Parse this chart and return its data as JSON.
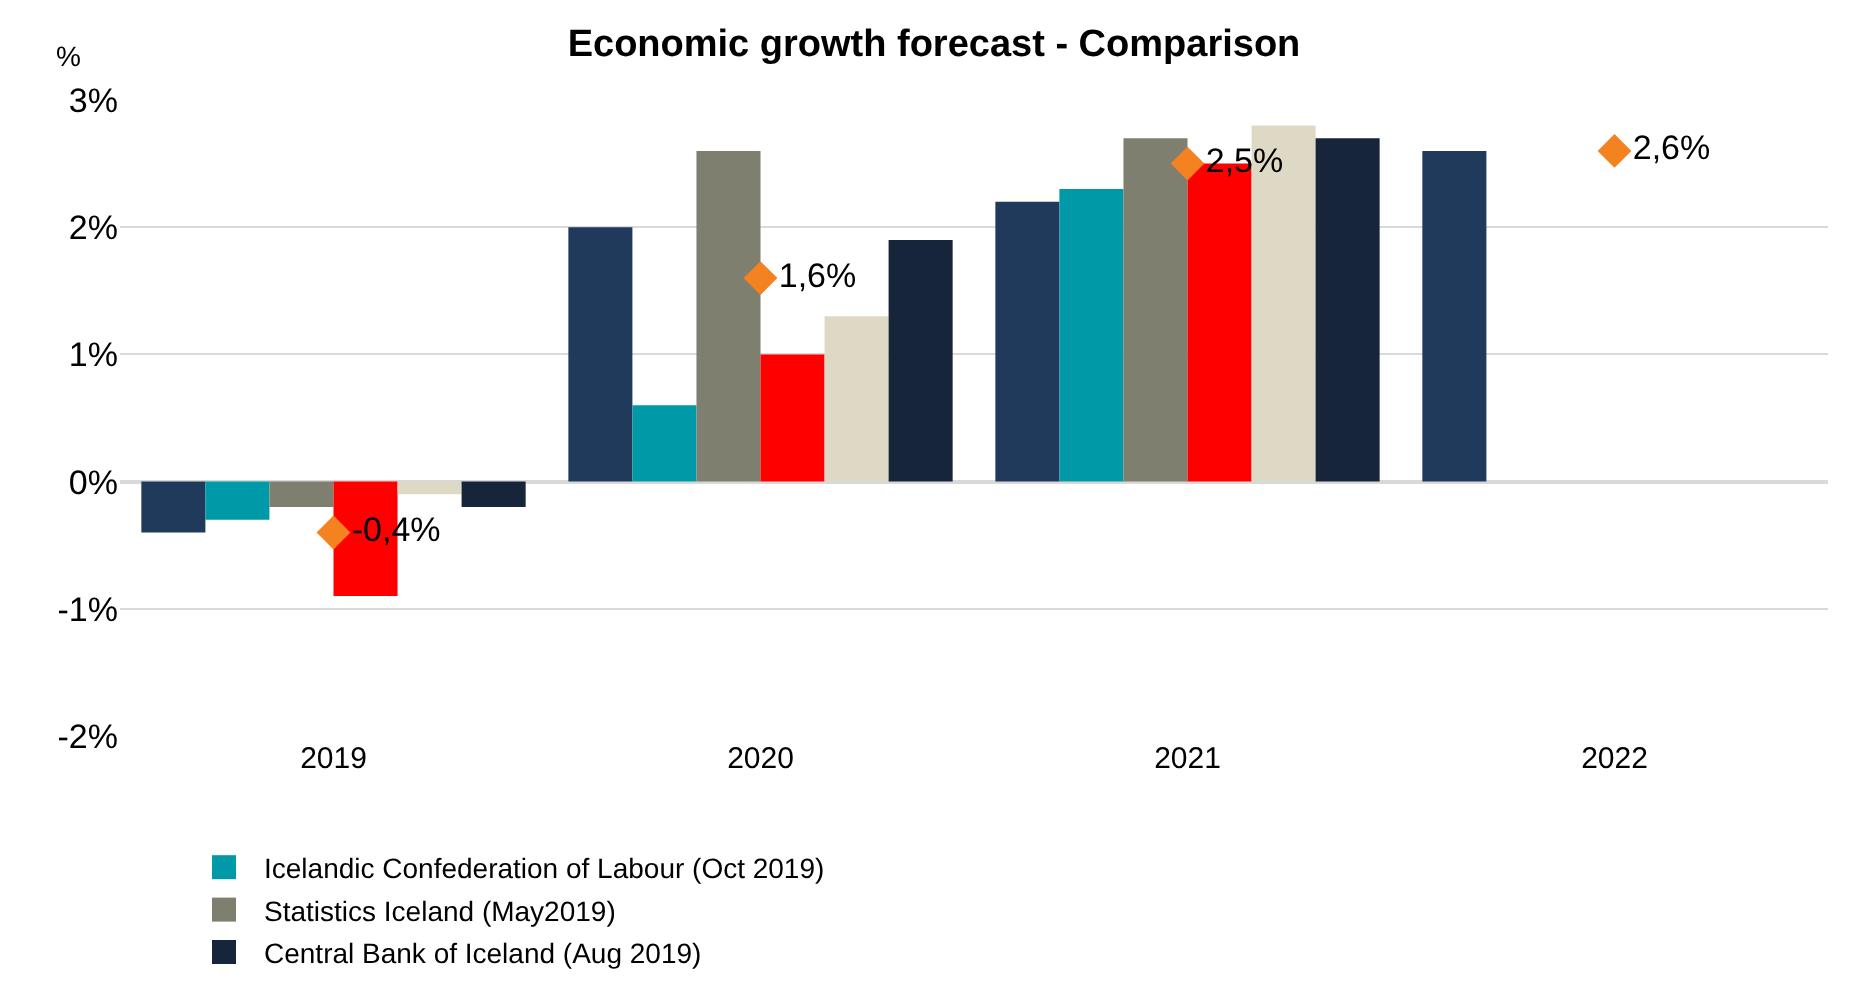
{
  "chart_data": {
    "type": "bar",
    "title": "Economic growth forecast - Comparison",
    "ylabel": "%",
    "categories": [
      "2019",
      "2020",
      "2021",
      "2022"
    ],
    "series": [
      {
        "color": "#1f3a5a",
        "values": [
          -0.4,
          2.0,
          2.2,
          2.6
        ]
      },
      {
        "name": "Icelandic Confederation of Labour (Oct 2019)",
        "color": "#0099a8",
        "values": [
          -0.3,
          0.6,
          2.3,
          null
        ]
      },
      {
        "name": "Statistics Iceland (May2019)",
        "color": "#7f7f6f",
        "values": [
          -0.2,
          2.6,
          2.7,
          null
        ]
      },
      {
        "color": "#ff0000",
        "values": [
          -0.9,
          1.0,
          2.5,
          null
        ]
      },
      {
        "color": "#ddd9c4",
        "values": [
          -0.1,
          1.3,
          2.8,
          null
        ]
      },
      {
        "name": "Central Bank of Iceland (Aug 2019)",
        "color": "#17253a",
        "values": [
          -0.2,
          1.9,
          2.7,
          null
        ]
      },
      {
        "type": "scatter",
        "marker": "diamond",
        "color": "#f58220",
        "values": [
          -0.4,
          1.6,
          2.5,
          2.6
        ],
        "value_labels": [
          "-0,4%",
          "1,6%",
          "2,5%",
          "2,6%"
        ]
      }
    ],
    "ylim": [
      -2,
      3
    ],
    "yticks": [
      {
        "value": -2,
        "label": "-2%"
      },
      {
        "value": -1,
        "label": "-1%"
      },
      {
        "value": 0,
        "label": "0%"
      },
      {
        "value": 1,
        "label": "1%"
      },
      {
        "value": 2,
        "label": "2%"
      },
      {
        "value": 3,
        "label": "3%"
      }
    ],
    "grid": "y",
    "legend": "bottom"
  }
}
